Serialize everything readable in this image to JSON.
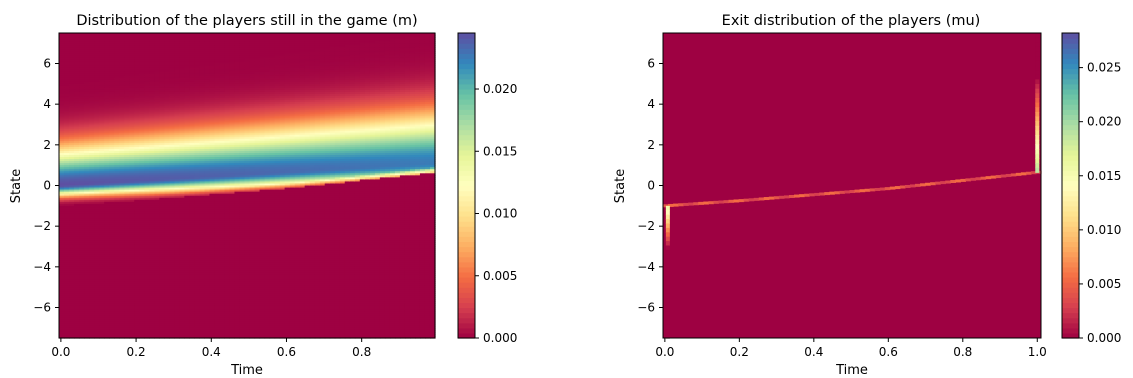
{
  "chart_data": [
    {
      "type": "heatmap",
      "title": "Distribution of the players still in the game (m)",
      "xlabel": "Time",
      "ylabel": "State",
      "xlim": [
        -0.005,
        0.995
      ],
      "ylim": [
        -7.5,
        7.5
      ],
      "xticks": [
        0.0,
        0.2,
        0.4,
        0.6,
        0.8
      ],
      "xtick_labels": [
        "0.0",
        "0.2",
        "0.4",
        "0.6",
        "0.8"
      ],
      "yticks": [
        -6,
        -4,
        -2,
        0,
        2,
        4,
        6
      ],
      "ytick_labels": [
        "−6",
        "−4",
        "−2",
        "0",
        "2",
        "4",
        "6"
      ],
      "colormap": "Spectral",
      "colorbar": {
        "vmin": 0.0,
        "vmax": 0.0245,
        "ticks": [
          0.0,
          0.005,
          0.01,
          0.015,
          0.02
        ],
        "tick_labels": [
          "0.000",
          "0.005",
          "0.010",
          "0.015",
          "0.020"
        ]
      },
      "grid": false,
      "description_data": {
        "exit_boundary": {
          "t": [
            0.0,
            0.2,
            0.4,
            0.6,
            0.8,
            1.0
          ],
          "state": [
            -1.0,
            -0.75,
            -0.45,
            -0.15,
            0.25,
            0.65
          ]
        },
        "density_peak_state_start": 0.0,
        "density_peak_state_end": 1.1,
        "density_spread_start": 1.3,
        "density_spread_end": 1.7
      }
    },
    {
      "type": "heatmap",
      "title": "Exit distribution of the players (mu)",
      "xlabel": "Time",
      "ylabel": "State",
      "xlim": [
        -0.005,
        1.01
      ],
      "ylim": [
        -7.5,
        7.5
      ],
      "xticks": [
        0.0,
        0.2,
        0.4,
        0.6,
        0.8,
        1.0
      ],
      "xtick_labels": [
        "0.0",
        "0.2",
        "0.4",
        "0.6",
        "0.8",
        "1.0"
      ],
      "yticks": [
        -6,
        -4,
        -2,
        0,
        2,
        4,
        6
      ],
      "ytick_labels": [
        "−6",
        "−4",
        "−2",
        "0",
        "2",
        "4",
        "6"
      ],
      "colormap": "Spectral",
      "colorbar": {
        "vmin": 0.0,
        "vmax": 0.0282,
        "ticks": [
          0.0,
          0.005,
          0.01,
          0.015,
          0.02,
          0.025
        ],
        "tick_labels": [
          "0.000",
          "0.005",
          "0.010",
          "0.015",
          "0.020",
          "0.025"
        ]
      },
      "grid": false,
      "description_data": {
        "exit_boundary": {
          "t": [
            0.0,
            0.2,
            0.4,
            0.6,
            0.8,
            1.0
          ],
          "state": [
            -1.0,
            -0.75,
            -0.45,
            -0.15,
            0.25,
            0.65
          ]
        },
        "initial_exit_column": {
          "t": 0.0,
          "state_from": -7.5,
          "state_to": -1.0
        },
        "terminal_exit_column": {
          "t": 1.0,
          "state_from": 0.65,
          "state_to": 7.5
        }
      }
    }
  ]
}
